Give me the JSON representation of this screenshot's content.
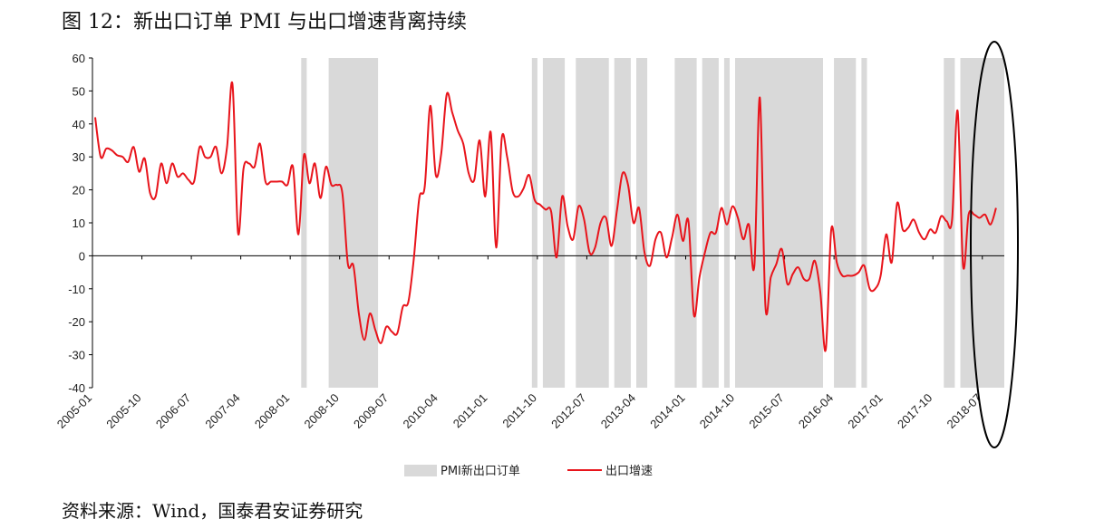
{
  "title": "图 12：新出口订单 PMI 与出口增速背离持续",
  "source": "资料来源：Wind，国泰君安证券研究",
  "chart_data": {
    "type": "line",
    "y_ticks": [
      60,
      50,
      40,
      30,
      20,
      10,
      0,
      -10,
      -20,
      -30,
      -40
    ],
    "ylim": [
      -40,
      60
    ],
    "x_range": [
      "2005-01",
      "2018-10"
    ],
    "x_tick_labels": [
      "2005-01",
      "2005-10",
      "2006-07",
      "2007-04",
      "2008-01",
      "2008-10",
      "2009-07",
      "2010-04",
      "2011-01",
      "2011-10",
      "2012-07",
      "2013-04",
      "2014-01",
      "2014-10",
      "2015-07",
      "2016-04",
      "2017-01",
      "2017-10",
      "2018-07"
    ],
    "series": [
      {
        "name": "PMI新出口订单",
        "kind": "shaded-periods",
        "color": "#d9d9d9",
        "periods": [
          [
            "2008-03",
            "2008-03"
          ],
          [
            "2008-08",
            "2009-04"
          ],
          [
            "2011-09",
            "2011-09"
          ],
          [
            "2011-11",
            "2012-02"
          ],
          [
            "2012-05",
            "2012-10"
          ],
          [
            "2012-12",
            "2013-02"
          ],
          [
            "2013-04",
            "2013-05"
          ],
          [
            "2013-11",
            "2014-02"
          ],
          [
            "2014-04",
            "2014-06"
          ],
          [
            "2014-08",
            "2014-08"
          ],
          [
            "2014-10",
            "2016-01"
          ],
          [
            "2016-04",
            "2016-07"
          ],
          [
            "2016-09",
            "2016-09"
          ],
          [
            "2017-12",
            "2018-01"
          ],
          [
            "2018-03",
            "2018-10"
          ]
        ]
      },
      {
        "name": "出口增速",
        "kind": "line",
        "color": "#e8141b",
        "points": [
          [
            "2005-01",
            42
          ],
          [
            "2005-02",
            30
          ],
          [
            "2005-03",
            32.5
          ],
          [
            "2005-04",
            32
          ],
          [
            "2005-05",
            30.5
          ],
          [
            "2005-06",
            30
          ],
          [
            "2005-07",
            28.5
          ],
          [
            "2005-08",
            33
          ],
          [
            "2005-09",
            25.5
          ],
          [
            "2005-10",
            29.5
          ],
          [
            "2005-11",
            19
          ],
          [
            "2005-12",
            18
          ],
          [
            "2006-01",
            28
          ],
          [
            "2006-02",
            22
          ],
          [
            "2006-03",
            28
          ],
          [
            "2006-04",
            24
          ],
          [
            "2006-05",
            25
          ],
          [
            "2006-06",
            23
          ],
          [
            "2006-07",
            22.5
          ],
          [
            "2006-08",
            33
          ],
          [
            "2006-09",
            30
          ],
          [
            "2006-10",
            30
          ],
          [
            "2006-11",
            33
          ],
          [
            "2006-12",
            25
          ],
          [
            "2007-01",
            33
          ],
          [
            "2007-02",
            52
          ],
          [
            "2007-03",
            7
          ],
          [
            "2007-04",
            26.5
          ],
          [
            "2007-05",
            28
          ],
          [
            "2007-06",
            27
          ],
          [
            "2007-07",
            34
          ],
          [
            "2007-08",
            22.5
          ],
          [
            "2007-09",
            22.5
          ],
          [
            "2007-10",
            22.5
          ],
          [
            "2007-11",
            22.5
          ],
          [
            "2007-12",
            21.5
          ],
          [
            "2008-01",
            27
          ],
          [
            "2008-02",
            6.5
          ],
          [
            "2008-03",
            30.5
          ],
          [
            "2008-04",
            22
          ],
          [
            "2008-05",
            28
          ],
          [
            "2008-06",
            17.5
          ],
          [
            "2008-07",
            27
          ],
          [
            "2008-08",
            21.5
          ],
          [
            "2008-09",
            21.5
          ],
          [
            "2008-10",
            19
          ],
          [
            "2008-11",
            -2.5
          ],
          [
            "2008-12",
            -3
          ],
          [
            "2009-01",
            -17.5
          ],
          [
            "2009-02",
            -25.5
          ],
          [
            "2009-03",
            -17.5
          ],
          [
            "2009-04",
            -22.5
          ],
          [
            "2009-05",
            -26.5
          ],
          [
            "2009-06",
            -21.5
          ],
          [
            "2009-07",
            -23
          ],
          [
            "2009-08",
            -23.5
          ],
          [
            "2009-09",
            -15.5
          ],
          [
            "2009-10",
            -14
          ],
          [
            "2009-11",
            -1
          ],
          [
            "2009-12",
            17.5
          ],
          [
            "2010-01",
            21
          ],
          [
            "2010-02",
            45.5
          ],
          [
            "2010-03",
            24.5
          ],
          [
            "2010-04",
            31
          ],
          [
            "2010-05",
            49
          ],
          [
            "2010-06",
            43.5
          ],
          [
            "2010-07",
            38
          ],
          [
            "2010-08",
            34
          ],
          [
            "2010-09",
            25
          ],
          [
            "2010-10",
            23
          ],
          [
            "2010-11",
            35
          ],
          [
            "2010-12",
            18
          ],
          [
            "2011-01",
            37.5
          ],
          [
            "2011-02",
            2.5
          ],
          [
            "2011-03",
            35.5
          ],
          [
            "2011-04",
            30
          ],
          [
            "2011-05",
            19.5
          ],
          [
            "2011-06",
            18
          ],
          [
            "2011-07",
            20.5
          ],
          [
            "2011-08",
            24.5
          ],
          [
            "2011-09",
            17
          ],
          [
            "2011-10",
            15.5
          ],
          [
            "2011-11",
            14
          ],
          [
            "2011-12",
            13.5
          ],
          [
            "2012-01",
            -0.5
          ],
          [
            "2012-02",
            18
          ],
          [
            "2012-03",
            9
          ],
          [
            "2012-04",
            5
          ],
          [
            "2012-05",
            15
          ],
          [
            "2012-06",
            11
          ],
          [
            "2012-07",
            1
          ],
          [
            "2012-08",
            2.5
          ],
          [
            "2012-09",
            10
          ],
          [
            "2012-10",
            11.5
          ],
          [
            "2012-11",
            3
          ],
          [
            "2012-12",
            14
          ],
          [
            "2013-01",
            25
          ],
          [
            "2013-02",
            21.5
          ],
          [
            "2013-03",
            10
          ],
          [
            "2013-04",
            14.5
          ],
          [
            "2013-05",
            1
          ],
          [
            "2013-06",
            -3
          ],
          [
            "2013-07",
            5
          ],
          [
            "2013-08",
            7
          ],
          [
            "2013-09",
            -0.5
          ],
          [
            "2013-10",
            5.5
          ],
          [
            "2013-11",
            12.5
          ],
          [
            "2013-12",
            4.5
          ],
          [
            "2014-01",
            10.5
          ],
          [
            "2014-02",
            -18
          ],
          [
            "2014-03",
            -6.5
          ],
          [
            "2014-04",
            1
          ],
          [
            "2014-05",
            7
          ],
          [
            "2014-06",
            7
          ],
          [
            "2014-07",
            14.5
          ],
          [
            "2014-08",
            9.5
          ],
          [
            "2014-09",
            15
          ],
          [
            "2014-10",
            11.5
          ],
          [
            "2014-11",
            5
          ],
          [
            "2014-12",
            9.5
          ],
          [
            "2015-01",
            -3
          ],
          [
            "2015-02",
            48
          ],
          [
            "2015-03",
            -15
          ],
          [
            "2015-04",
            -6.5
          ],
          [
            "2015-05",
            -2.5
          ],
          [
            "2015-06",
            2
          ],
          [
            "2015-07",
            -8.5
          ],
          [
            "2015-08",
            -5.5
          ],
          [
            "2015-09",
            -3.5
          ],
          [
            "2015-10",
            -7
          ],
          [
            "2015-11",
            -7
          ],
          [
            "2015-12",
            -1.5
          ],
          [
            "2016-01",
            -11
          ],
          [
            "2016-02",
            -28.5
          ],
          [
            "2016-03",
            8
          ],
          [
            "2016-04",
            -2
          ],
          [
            "2016-05",
            -6
          ],
          [
            "2016-06",
            -6
          ],
          [
            "2016-07",
            -6
          ],
          [
            "2016-08",
            -5
          ],
          [
            "2016-09",
            -3
          ],
          [
            "2016-10",
            -10
          ],
          [
            "2016-11",
            -10
          ],
          [
            "2016-12",
            -6
          ],
          [
            "2017-01",
            6.5
          ],
          [
            "2017-02",
            -2
          ],
          [
            "2017-03",
            16
          ],
          [
            "2017-04",
            8
          ],
          [
            "2017-05",
            8.5
          ],
          [
            "2017-06",
            11
          ],
          [
            "2017-07",
            7
          ],
          [
            "2017-08",
            5
          ],
          [
            "2017-09",
            8
          ],
          [
            "2017-10",
            7
          ],
          [
            "2017-11",
            12
          ],
          [
            "2017-12",
            10.5
          ],
          [
            "2018-01",
            11
          ],
          [
            "2018-02",
            44
          ],
          [
            "2018-03",
            -3
          ],
          [
            "2018-04",
            12.5
          ],
          [
            "2018-05",
            12.5
          ],
          [
            "2018-06",
            11.5
          ],
          [
            "2018-07",
            12.5
          ],
          [
            "2018-08",
            9.5
          ],
          [
            "2018-09",
            14.5
          ]
        ]
      }
    ],
    "legend_position": "bottom",
    "grid": false,
    "annotation": "black ellipse around 2018 data"
  }
}
